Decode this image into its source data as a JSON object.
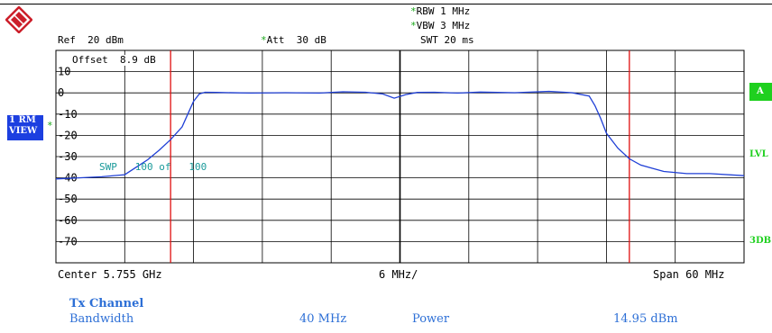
{
  "header": {
    "rbw": "RBW 1 MHz",
    "vbw": "VBW 3 MHz",
    "swt": "SWT 20 ms",
    "ref": "Ref  20 dBm",
    "att": "Att  30 dB",
    "offset": "Offset  8.9 dB",
    "sweep": "SWP   100 of   100",
    "star": "*"
  },
  "side": {
    "trace_label_1": "1 RM",
    "trace_label_2": "VIEW",
    "a_label": "A",
    "lvl_label": "LVL",
    "db_label": "3DB"
  },
  "footer": {
    "center": "Center 5.755 GHz",
    "div": "6 MHz/",
    "span": "Span 60 MHz"
  },
  "table": {
    "title": "Tx Channel",
    "col1": "Bandwidth",
    "col2": "40 MHz",
    "col3": "Power",
    "col4": "14.95 dBm"
  },
  "colors": {
    "trace": "#1f3fd6",
    "marker_line": "#e01010",
    "grid": "#000000",
    "accent_green": "#1fd01f",
    "brand_red": "#cc1f2a"
  },
  "chart_data": {
    "type": "line",
    "ylim": [
      -80,
      20
    ],
    "yticks": [
      10,
      0,
      -10,
      -20,
      -30,
      -40,
      -50,
      -60,
      -70
    ],
    "ytick_labels": [
      "10",
      "0",
      "-10",
      "-20",
      "-30",
      "-40",
      "-50",
      "-60",
      "-70"
    ],
    "xlim": [
      5.725,
      5.785
    ],
    "x_unit": "GHz",
    "channel_limits_ghz": [
      5.735,
      5.775
    ],
    "series": [
      {
        "x": [
          5.725,
          5.727,
          5.729,
          5.731,
          5.732,
          5.733,
          5.734,
          5.735,
          5.736,
          5.7365,
          5.737,
          5.7375,
          5.738,
          5.739,
          5.742,
          5.745,
          5.748,
          5.75,
          5.752,
          5.7535,
          5.7545,
          5.7555,
          5.7565,
          5.758,
          5.76,
          5.762,
          5.765,
          5.768,
          5.77,
          5.7715,
          5.772,
          5.7725,
          5.773,
          5.774,
          5.775,
          5.776,
          5.777,
          5.778,
          5.78,
          5.782,
          5.785
        ],
        "y": [
          -40.5,
          -40,
          -39.5,
          -38.5,
          -35,
          -31.5,
          -27,
          -22,
          -16,
          -10,
          -4,
          -0.5,
          0.3,
          0.2,
          -0.1,
          0.1,
          -0.1,
          0.5,
          0.3,
          -0.5,
          -2.5,
          -0.8,
          0.2,
          0.3,
          -0.1,
          0.4,
          0.1,
          0.7,
          0.1,
          -1.5,
          -6,
          -12,
          -19,
          -26,
          -31,
          -34,
          -35.5,
          -37,
          -38,
          -38,
          -39
        ]
      }
    ]
  }
}
